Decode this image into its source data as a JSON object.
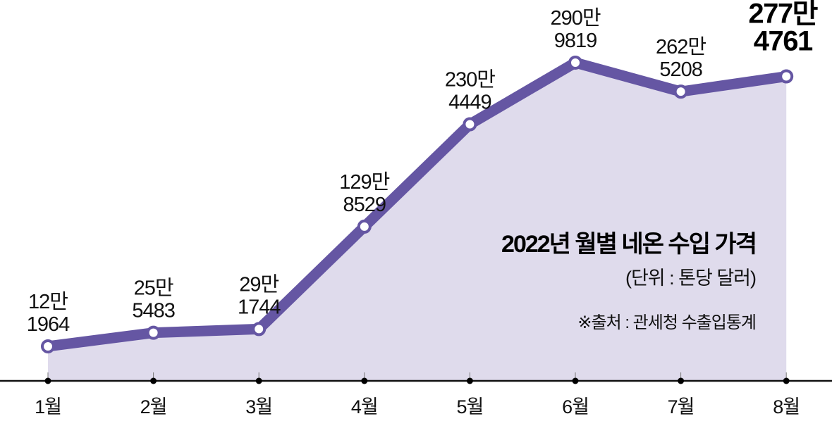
{
  "chart_data": {
    "type": "area",
    "title": "2022년 월별 네온 수입 가격",
    "subtitle": "(단위 : 톤당 달러)",
    "source": "※출처 : 관세청 수출입통계",
    "categories": [
      "1월",
      "2월",
      "3월",
      "4월",
      "5월",
      "6월",
      "7월",
      "8월"
    ],
    "values": [
      121964,
      255483,
      291744,
      1298529,
      2304449,
      2909819,
      2625208,
      2774761
    ],
    "data_labels": [
      [
        "12만",
        "1964"
      ],
      [
        "25만",
        "5483"
      ],
      [
        "29만",
        "1744"
      ],
      [
        "129만",
        "8529"
      ],
      [
        "230만",
        "4449"
      ],
      [
        "290만",
        "9819"
      ],
      [
        "262만",
        "5208"
      ],
      [
        "277만",
        "4761"
      ]
    ],
    "highlight_index": 7,
    "grid": false,
    "legend": "none",
    "colors": {
      "line": "#6556a3",
      "fill": "#dfdbec",
      "marker_fill": "#ffffff",
      "axis": "#111111"
    }
  }
}
